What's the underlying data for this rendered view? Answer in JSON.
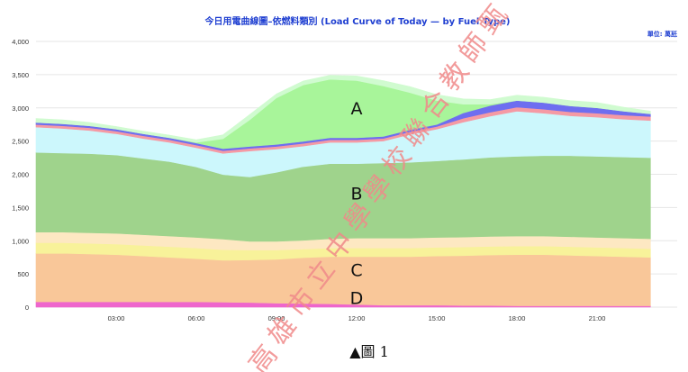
{
  "chart_data": {
    "type": "area",
    "title": "今日用電曲線圖–依燃料類別 (Load Curve of Today — by Fuel Type)",
    "unit_label": "單位: 萬瓩",
    "ylim": [
      0,
      4000
    ],
    "yticks": [
      "0",
      "500",
      "1,000",
      "1,500",
      "2,000",
      "2,500",
      "3,000",
      "3,500",
      "4,000"
    ],
    "xlim": [
      0,
      24
    ],
    "xticks": [
      {
        "x": 3,
        "label": "03:00"
      },
      {
        "x": 6,
        "label": "06:00"
      },
      {
        "x": 9,
        "label": "09:00"
      },
      {
        "x": 12,
        "label": "12:00"
      },
      {
        "x": 15,
        "label": "15:00"
      },
      {
        "x": 18,
        "label": "18:00"
      },
      {
        "x": 21,
        "label": "21:00"
      }
    ],
    "stacked": true,
    "x": [
      0,
      1,
      2,
      3,
      4,
      5,
      6,
      7,
      8,
      9,
      10,
      11,
      12,
      13,
      14,
      15,
      16,
      17,
      18,
      19,
      20,
      21,
      22,
      23
    ],
    "series": [
      {
        "color": "#ee66cc",
        "values": [
          80,
          80,
          80,
          80,
          80,
          80,
          80,
          75,
          70,
          60,
          55,
          50,
          40,
          30,
          30,
          30,
          25,
          25,
          20,
          20,
          20,
          20,
          20,
          20
        ]
      },
      {
        "color": "#f9c799",
        "values": [
          730,
          730,
          720,
          710,
          690,
          670,
          650,
          630,
          640,
          660,
          690,
          710,
          720,
          730,
          730,
          740,
          750,
          760,
          770,
          770,
          760,
          750,
          740,
          730
        ]
      },
      {
        "color": "#f8f29a",
        "values": [
          160,
          160,
          160,
          160,
          160,
          160,
          160,
          160,
          150,
          140,
          130,
          130,
          130,
          130,
          130,
          130,
          130,
          130,
          130,
          130,
          130,
          130,
          130,
          130
        ]
      },
      {
        "color": "#fde8c2",
        "values": [
          160,
          160,
          160,
          160,
          160,
          160,
          160,
          160,
          130,
          130,
          130,
          140,
          150,
          150,
          150,
          150,
          150,
          150,
          150,
          150,
          150,
          150,
          150,
          150
        ]
      },
      {
        "color": "#9fd38c",
        "values": [
          1200,
          1190,
          1190,
          1180,
          1150,
          1120,
          1060,
          970,
          970,
          1040,
          1110,
          1130,
          1120,
          1130,
          1140,
          1150,
          1170,
          1190,
          1200,
          1210,
          1220,
          1220,
          1220,
          1220
        ]
      },
      {
        "color": "#ccf7fc",
        "values": [
          380,
          370,
          350,
          320,
          300,
          290,
          290,
          320,
          390,
          350,
          310,
          320,
          320,
          330,
          420,
          480,
          560,
          620,
          680,
          640,
          600,
          590,
          570,
          560
        ]
      },
      {
        "color": "#f59aa4",
        "values": [
          40,
          40,
          40,
          40,
          40,
          40,
          40,
          40,
          40,
          40,
          40,
          40,
          40,
          40,
          40,
          40,
          60,
          60,
          60,
          60,
          60,
          60,
          60,
          60
        ]
      },
      {
        "color": "#6e6ef0",
        "values": [
          30,
          30,
          30,
          30,
          30,
          30,
          30,
          30,
          30,
          30,
          30,
          30,
          30,
          30,
          30,
          30,
          80,
          100,
          100,
          100,
          90,
          80,
          60,
          40
        ]
      },
      {
        "color": "#a8f59a",
        "values": [
          0,
          0,
          0,
          0,
          0,
          0,
          10,
          150,
          400,
          700,
          850,
          880,
          860,
          760,
          560,
          360,
          130,
          20,
          0,
          0,
          0,
          0,
          0,
          0
        ]
      },
      {
        "color": "#d0fbd0",
        "values": [
          60,
          60,
          50,
          40,
          40,
          40,
          40,
          60,
          80,
          60,
          60,
          60,
          70,
          80,
          90,
          90,
          80,
          70,
          80,
          80,
          80,
          80,
          60,
          40
        ]
      }
    ],
    "region_labels": [
      {
        "text": "A",
        "x": 12,
        "y": 2900
      },
      {
        "text": "B",
        "x": 12,
        "y": 1620
      },
      {
        "text": "C",
        "x": 12,
        "y": 470
      },
      {
        "text": "D",
        "x": 12,
        "y": 50
      }
    ]
  },
  "caption": "▲圖 1",
  "watermark": "高雄市立中學學校聯合教師甄"
}
